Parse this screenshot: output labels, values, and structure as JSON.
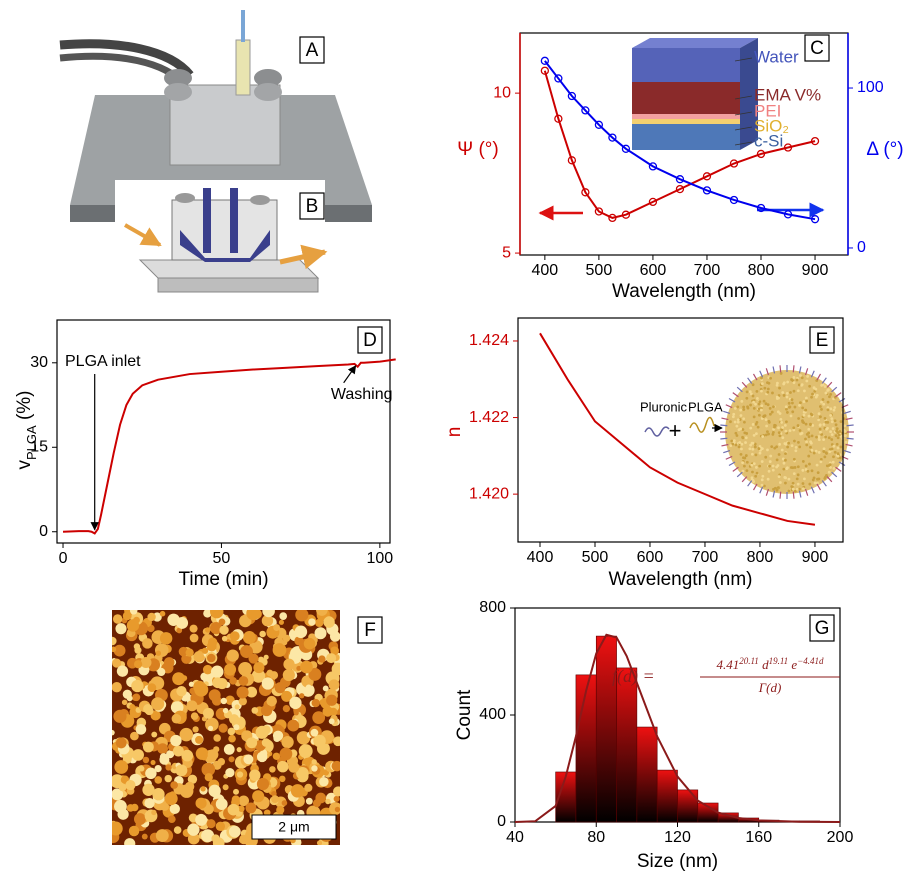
{
  "figure": {
    "panel_labels": [
      "A",
      "B",
      "F"
    ],
    "scale_bar": "2 μm",
    "stack_layers": [
      "Water",
      "EMA V%",
      "PEI",
      "SiO₂",
      "c-Si"
    ],
    "particle_inset": {
      "left": "Pluronic",
      "plus": "+",
      "right": "PLGA"
    }
  },
  "chart_data": [
    {
      "type": "line",
      "panel": "C",
      "xlabel": "Wavelength (nm)",
      "ylabel": "Ψ (°)",
      "y2label": "Δ (°)",
      "ylabel_color": "#cc0000",
      "y2label_color": "#0000ee",
      "xlim": [
        354,
        961
      ],
      "xticks": [
        400,
        500,
        600,
        700,
        800,
        900
      ],
      "ylim": [
        4.94,
        11.88
      ],
      "yticks": [
        5,
        10
      ],
      "y2lim": [
        -4.4,
        134.4
      ],
      "y2ticks": [
        0,
        100
      ],
      "marker": "circle",
      "x": [
        400,
        425,
        450,
        475,
        500,
        525,
        550,
        600,
        650,
        700,
        750,
        800,
        850,
        900
      ],
      "series": [
        {
          "color": "#cc0000",
          "axis": "y",
          "values": [
            10.7,
            9.2,
            7.9,
            6.9,
            6.3,
            6.1,
            6.2,
            6.6,
            7.0,
            7.4,
            7.8,
            8.1,
            8.3,
            8.5
          ]
        },
        {
          "color": "#0000ee",
          "axis": "y2",
          "values": [
            117,
            106,
            95,
            86,
            77,
            69,
            62,
            51,
            43,
            36,
            30,
            25,
            21,
            18
          ]
        }
      ]
    },
    {
      "type": "line",
      "panel": "D",
      "xlabel": "Time (min)",
      "ylabel": "v",
      "ylabel_sub": "PLGA",
      "ylabel_unit": " (%)",
      "xlim": [
        -1.9,
        103.2
      ],
      "xticks": [
        0,
        50,
        100
      ],
      "ylim": [
        -2,
        37.6
      ],
      "yticks": [
        0,
        15,
        30
      ],
      "x": [
        0,
        5,
        8,
        9,
        10,
        11,
        12,
        14,
        16,
        18,
        20,
        22,
        25,
        30,
        40,
        50,
        60,
        70,
        80,
        90,
        92,
        93,
        94,
        95,
        100,
        105
      ],
      "series": [
        {
          "color": "#cc0000",
          "values": [
            0,
            0.1,
            0.1,
            0,
            -0.3,
            0.5,
            3,
            8.5,
            14,
            19,
            22.5,
            24.5,
            26,
            27,
            28,
            28.4,
            28.8,
            29.1,
            29.4,
            29.7,
            29.8,
            29.3,
            30.0,
            30.0,
            30.2,
            30.6
          ]
        }
      ],
      "annotations": [
        {
          "text": "PLGA inlet",
          "x": 10,
          "y": 0
        },
        {
          "text": "Washing",
          "x": 93,
          "y": 30
        }
      ]
    },
    {
      "type": "line",
      "panel": "E",
      "xlabel": "Wavelength (nm)",
      "ylabel": "n",
      "ylabel_color": "#cc0000",
      "xlim": [
        360,
        951
      ],
      "xticks": [
        400,
        500,
        600,
        700,
        800,
        900
      ],
      "ylim": [
        1.41875,
        1.4246
      ],
      "yticks": [
        {
          "value": 1.42,
          "label": "1.420"
        },
        1.422,
        1.424
      ],
      "x": [
        400,
        450,
        500,
        550,
        600,
        650,
        700,
        750,
        800,
        850,
        900
      ],
      "series": [
        {
          "color": "#cc0000",
          "values": [
            1.4242,
            1.423,
            1.4219,
            1.4213,
            1.4207,
            1.4203,
            1.42,
            1.4197,
            1.4195,
            1.4193,
            1.4192
          ]
        }
      ]
    },
    {
      "type": "histogram",
      "panel": "G",
      "xlabel": "Size (nm)",
      "ylabel": "Count",
      "xlim": [
        40,
        200
      ],
      "xticks": [
        40,
        80,
        120,
        160,
        200
      ],
      "ylim": [
        0,
        800
      ],
      "yticks": [
        0,
        400,
        800
      ],
      "bins": [
        60,
        70,
        80,
        90,
        100,
        110,
        120,
        130,
        140,
        150,
        160,
        170,
        180,
        190
      ],
      "values": [
        187,
        550,
        695,
        576,
        355,
        194,
        120,
        71,
        34,
        15,
        7,
        4,
        4
      ],
      "fit": {
        "color": "#8b1a1a",
        "x": [
          40,
          50,
          60,
          65,
          70,
          75,
          80,
          85,
          90,
          95,
          100,
          110,
          120,
          130,
          140,
          150,
          160,
          180,
          200
        ],
        "values": [
          0,
          3,
          60,
          170,
          320,
          490,
          630,
          700,
          690,
          620,
          520,
          320,
          170,
          80,
          35,
          15,
          6,
          1,
          0
        ],
        "formula": {
          "lhs": "f(d) =",
          "num_base": "4.41",
          "num_exp": "20.11",
          "num_d": " d",
          "num_d_exp": "19.11",
          "num_e": " e",
          "num_e_exp": "−4.41d",
          "den": "Γ(d)"
        }
      }
    }
  ]
}
